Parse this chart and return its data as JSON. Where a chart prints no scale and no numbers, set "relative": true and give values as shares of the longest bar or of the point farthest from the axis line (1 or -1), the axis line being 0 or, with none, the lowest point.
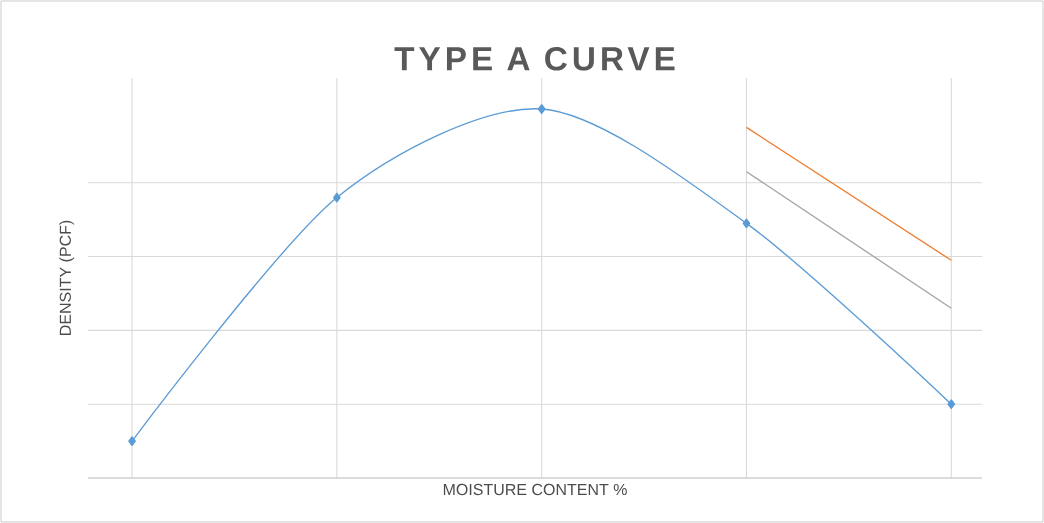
{
  "chart_data": {
    "type": "line",
    "title": "TYPE A CURVE",
    "xlabel": "MOISTURE CONTENT %",
    "ylabel": "DENSITY (PCF)",
    "relative": true,
    "grid": true,
    "categories": [
      null,
      null,
      null,
      null,
      null
    ],
    "series": [
      {
        "color": "#5b9bd5",
        "values": [
          0.1,
          0.76,
          1.0,
          0.69,
          0.2
        ],
        "marker": "diamond"
      },
      {
        "color": "#a5a5a5",
        "values": [
          null,
          null,
          null,
          0.83,
          0.46
        ],
        "marker": "none"
      },
      {
        "color": "#ed7d31",
        "values": [
          null,
          null,
          null,
          0.95,
          0.59
        ],
        "marker": "none"
      }
    ]
  }
}
